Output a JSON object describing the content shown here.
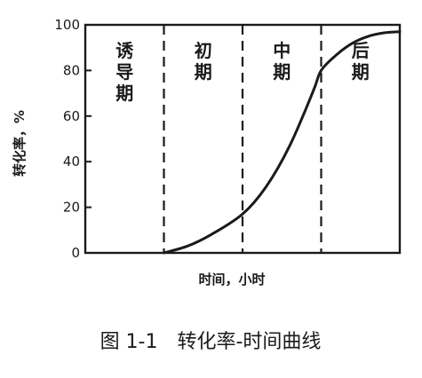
{
  "chart_data": {
    "type": "line",
    "title": "图 1-1　转化率-时间曲线",
    "xlabel": "时间，小时",
    "ylabel": "转化率，%",
    "ylim": [
      0,
      100
    ],
    "y_ticks": [
      0,
      20,
      40,
      60,
      80,
      100
    ],
    "x_ticks_shown": false,
    "grid": false,
    "stage_boundaries": [
      1,
      2,
      3
    ],
    "stages": [
      {
        "label": "诱导期",
        "x_start": 0,
        "x_end": 1
      },
      {
        "label": "初期",
        "x_start": 1,
        "x_end": 2
      },
      {
        "label": "中期",
        "x_start": 2,
        "x_end": 3
      },
      {
        "label": "后期",
        "x_start": 3,
        "x_end": 4
      }
    ],
    "series": [
      {
        "x": [
          0,
          1.0,
          1.3,
          1.6,
          2.0,
          2.3,
          2.6,
          2.9,
          3.0,
          3.2,
          3.4,
          3.6,
          3.8,
          4.0
        ],
        "values": [
          0,
          0,
          3,
          8,
          17,
          29,
          47,
          71,
          80,
          87,
          92,
          95,
          96.5,
          97
        ]
      }
    ]
  }
}
